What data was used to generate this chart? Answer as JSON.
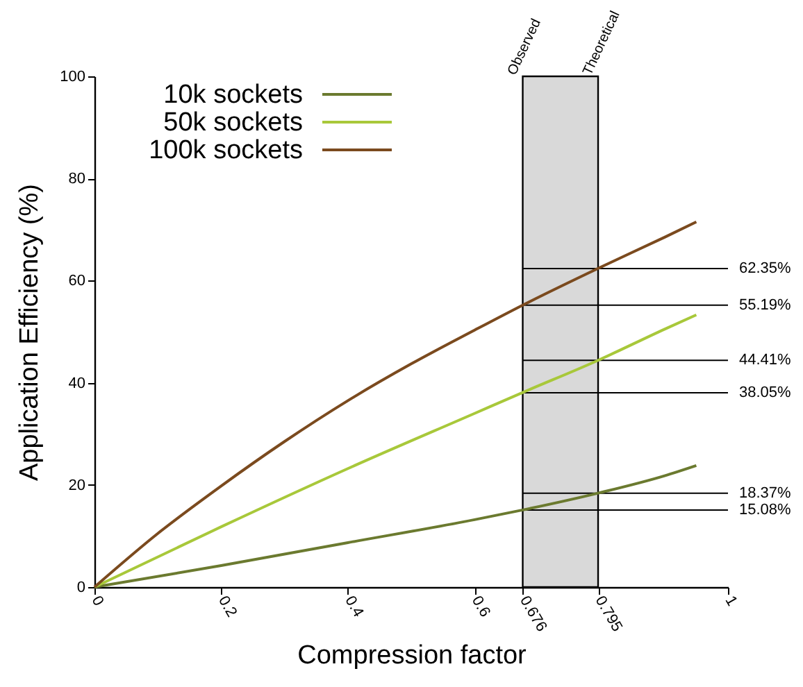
{
  "chart_data": {
    "type": "line",
    "xlabel": "Compression factor",
    "ylabel": "Application Efficiency (%)",
    "xlim": [
      0,
      1
    ],
    "ylim": [
      0,
      100
    ],
    "xticks": [
      0,
      0.2,
      0.4,
      0.6,
      0.676,
      0.795,
      1
    ],
    "yticks": [
      0,
      20,
      40,
      60,
      80,
      100
    ],
    "grid": false,
    "legend": "top left",
    "marker": "none",
    "line_style": "solid",
    "series": [
      {
        "name": "10k sockets",
        "color": "#6b7a2f",
        "x": [
          0,
          0.2,
          0.4,
          0.6,
          0.676,
          0.795,
          0.9,
          0.95
        ],
        "values": [
          0,
          4.2,
          8.7,
          13.2,
          15.1,
          18.4,
          21.8,
          23.8
        ]
      },
      {
        "name": "50k sockets",
        "color": "#a8c83a",
        "x": [
          0,
          0.2,
          0.4,
          0.6,
          0.676,
          0.795,
          0.9,
          0.95
        ],
        "values": [
          0,
          11.8,
          23.2,
          34.0,
          38.1,
          44.4,
          50.5,
          53.3
        ]
      },
      {
        "name": "100k sockets",
        "color": "#7b4a1e",
        "x": [
          0,
          0.1,
          0.2,
          0.3,
          0.4,
          0.5,
          0.6,
          0.676,
          0.795,
          0.9,
          0.95
        ],
        "values": [
          0,
          10.5,
          19.8,
          28.5,
          36.5,
          43.7,
          50.3,
          55.2,
          62.4,
          68.5,
          71.5
        ]
      }
    ],
    "bands": [
      {
        "axis": "x",
        "from": 0.676,
        "to": 0.795,
        "color": "#d9d9d9"
      }
    ],
    "ref_lines": [
      {
        "axis": "y",
        "value": 62.35,
        "label": "62.35%",
        "color": "#000000"
      },
      {
        "axis": "y",
        "value": 55.19,
        "label": "55.19%",
        "color": "#000000"
      },
      {
        "axis": "y",
        "value": 44.41,
        "label": "44.41%",
        "color": "#000000"
      },
      {
        "axis": "y",
        "value": 38.05,
        "label": "38.05%",
        "color": "#000000"
      },
      {
        "axis": "y",
        "value": 18.37,
        "label": "18.37%",
        "color": "#000000"
      },
      {
        "axis": "y",
        "value": 15.08,
        "label": "15.08%",
        "color": "#000000"
      }
    ],
    "annotations": [
      {
        "text": "Observed",
        "x": 0.676,
        "y": 100
      },
      {
        "text": "Theoretical",
        "x": 0.795,
        "y": 100
      }
    ]
  }
}
